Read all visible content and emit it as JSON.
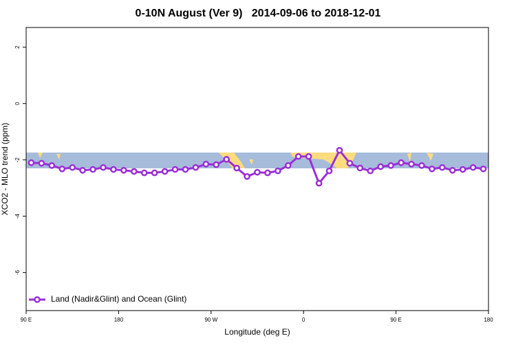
{
  "chart_data": {
    "type": "line",
    "title": "0-10N August (Ver 9)   2014-09-06 to 2018-12-01",
    "xlabel": "Longitude (deg E)",
    "ylabel": "XCO2 - MLO trend (ppm)",
    "xlim": [
      90,
      540
    ],
    "xticks": [
      {
        "value": 90,
        "label": "90 E"
      },
      180,
      {
        "value": 270,
        "label": "90 W"
      },
      {
        "value": 360,
        "label": "0"
      },
      {
        "value": 450,
        "label": "90 E"
      },
      {
        "value": 540,
        "label": "180"
      }
    ],
    "ylim": [
      -7.35,
      2.7
    ],
    "yticks": [
      2,
      0,
      -2,
      -4,
      -6
    ],
    "x": [
      95,
      105,
      115,
      125,
      135,
      145,
      155,
      165,
      175,
      185,
      195,
      205,
      215,
      225,
      235,
      245,
      255,
      265,
      275,
      285,
      295,
      305,
      315,
      325,
      335,
      345,
      355,
      365,
      375,
      385,
      395,
      405,
      415,
      425,
      435,
      445,
      455,
      465,
      475,
      485,
      495,
      505,
      515,
      525,
      535
    ],
    "series": [
      {
        "name": "Land (Nadir&Glint) and Ocean (Glint)",
        "color": "#9a2fd6",
        "values": [
          -2.1,
          -2.12,
          -2.2,
          -2.32,
          -2.27,
          -2.37,
          -2.34,
          -2.27,
          -2.34,
          -2.37,
          -2.41,
          -2.46,
          -2.46,
          -2.41,
          -2.34,
          -2.34,
          -2.27,
          -2.15,
          -2.17,
          -1.98,
          -2.29,
          -2.59,
          -2.44,
          -2.46,
          -2.39,
          -2.2,
          -1.88,
          -1.88,
          -2.83,
          -2.39,
          -1.66,
          -2.12,
          -2.29,
          -2.39,
          -2.24,
          -2.2,
          -2.1,
          -2.15,
          -2.2,
          -2.32,
          -2.27,
          -2.37,
          -2.34,
          -2.27,
          -2.32
        ]
      }
    ],
    "legend": "bottom-left"
  }
}
